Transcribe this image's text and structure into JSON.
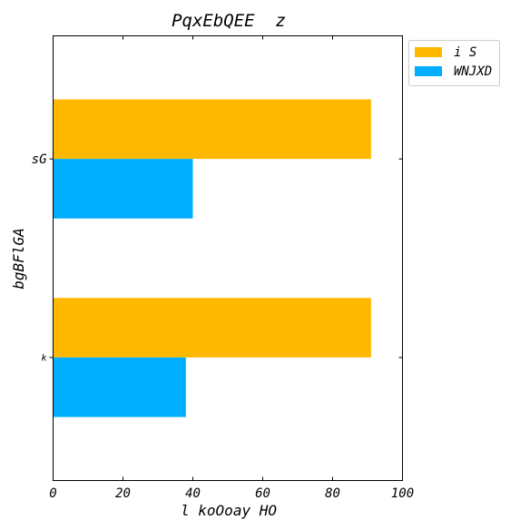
{
  "chart_data": {
    "type": "bar",
    "orientation": "horizontal",
    "title": "PqxEbQEE  z",
    "xlabel": "l koOoay HO",
    "ylabel": "bgBFlGA",
    "categories": [
      "k",
      "sG"
    ],
    "series": [
      {
        "name": "i S",
        "values": [
          91,
          91
        ],
        "color": "#FFB800"
      },
      {
        "name": "WNJXD",
        "values": [
          38,
          40
        ],
        "color": "#00AEFF"
      }
    ],
    "xlim": [
      0,
      100
    ],
    "xticks": [
      0,
      20,
      40,
      60,
      80,
      100
    ],
    "grid": false,
    "legend_position": "outside-top-right"
  }
}
